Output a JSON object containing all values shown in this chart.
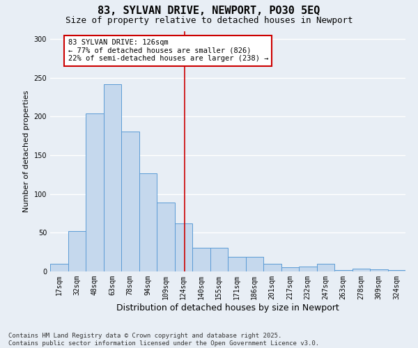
{
  "title": "83, SYLVAN DRIVE, NEWPORT, PO30 5EQ",
  "subtitle": "Size of property relative to detached houses in Newport",
  "xlabel": "Distribution of detached houses by size in Newport",
  "ylabel": "Number of detached properties",
  "categories": [
    "17sqm",
    "32sqm",
    "48sqm",
    "63sqm",
    "78sqm",
    "94sqm",
    "109sqm",
    "124sqm",
    "140sqm",
    "155sqm",
    "171sqm",
    "186sqm",
    "201sqm",
    "217sqm",
    "232sqm",
    "247sqm",
    "263sqm",
    "278sqm",
    "309sqm",
    "324sqm"
  ],
  "values": [
    10,
    52,
    204,
    242,
    181,
    127,
    89,
    62,
    31,
    31,
    19,
    19,
    10,
    5,
    6,
    10,
    2,
    4,
    3,
    2
  ],
  "bar_color": "#c5d8ed",
  "bar_edge_color": "#5b9bd5",
  "annotation_line1": "83 SYLVAN DRIVE: 126sqm",
  "annotation_line2": "← 77% of detached houses are smaller (826)",
  "annotation_line3": "22% of semi-detached houses are larger (238) →",
  "annotation_box_facecolor": "#ffffff",
  "annotation_box_edgecolor": "#cc0000",
  "vline_color": "#cc0000",
  "vline_x_index": 7.05,
  "ylim": [
    0,
    310
  ],
  "yticks": [
    0,
    50,
    100,
    150,
    200,
    250,
    300
  ],
  "footer1": "Contains HM Land Registry data © Crown copyright and database right 2025.",
  "footer2": "Contains public sector information licensed under the Open Government Licence v3.0.",
  "background_color": "#e8eef5",
  "grid_color": "#ffffff",
  "title_fontsize": 11,
  "subtitle_fontsize": 9,
  "tick_fontsize": 7,
  "ylabel_fontsize": 8,
  "xlabel_fontsize": 9,
  "annotation_fontsize": 7.5,
  "footer_fontsize": 6.5
}
